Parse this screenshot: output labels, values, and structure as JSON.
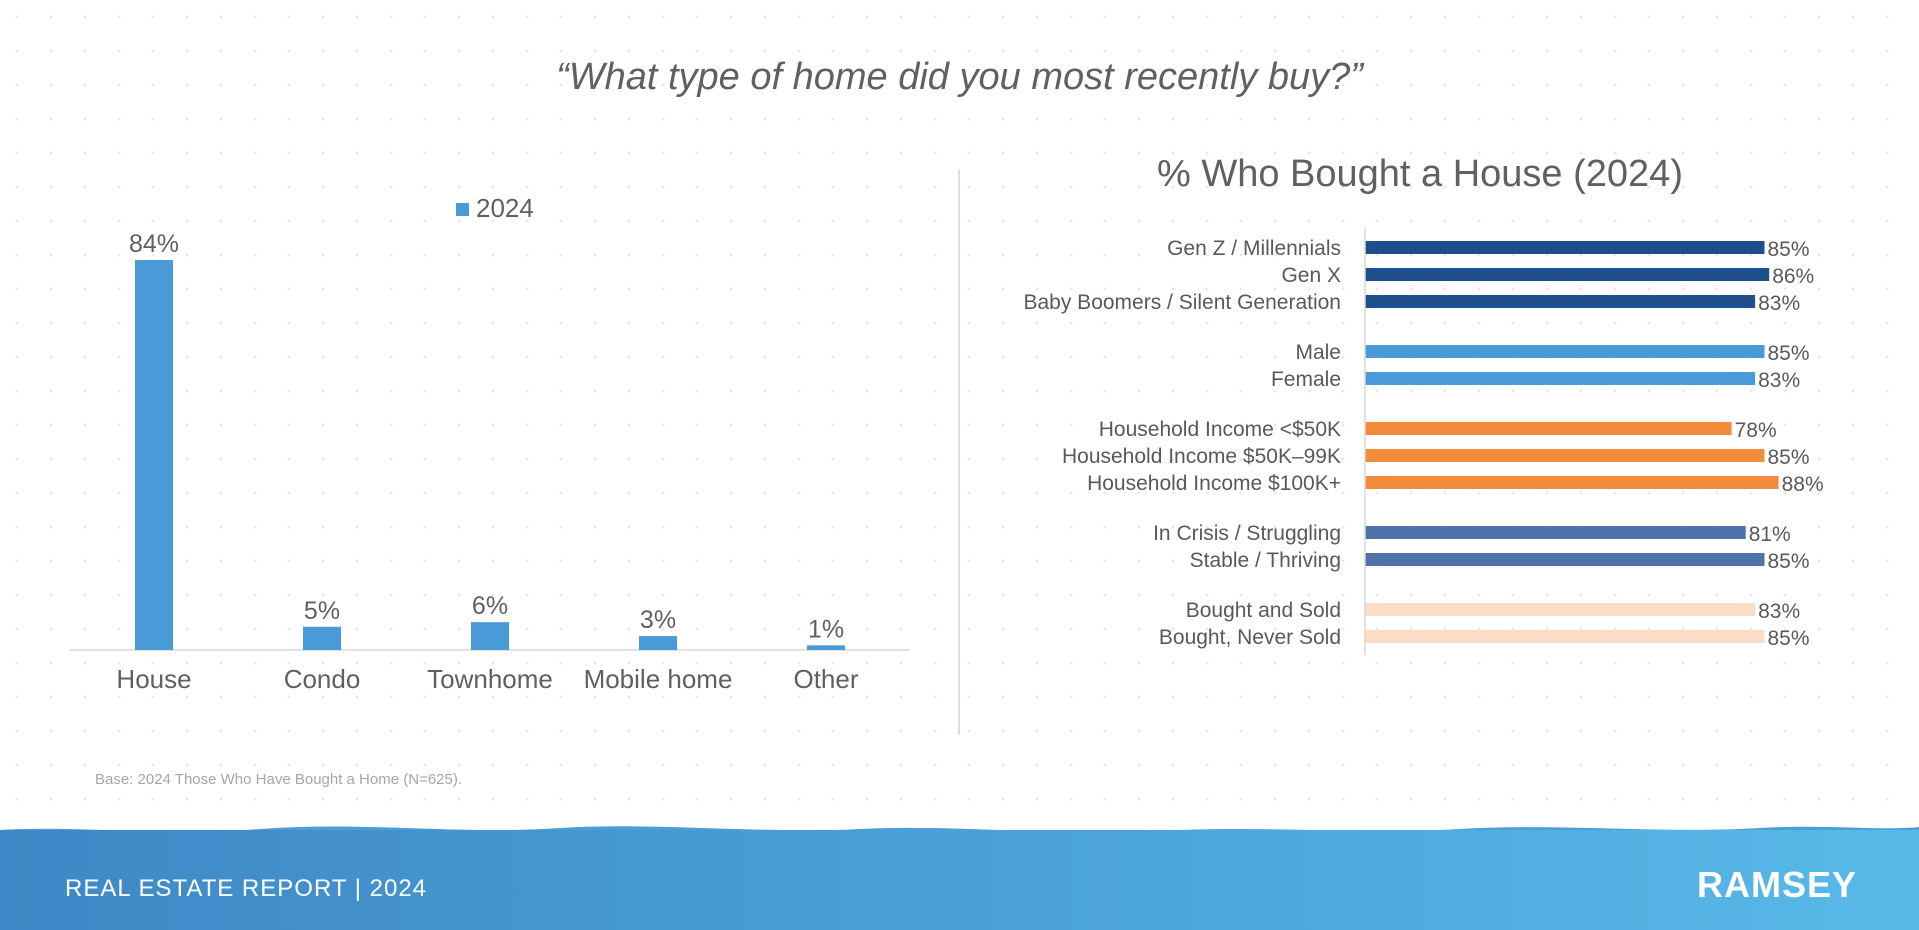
{
  "question": "“What type of home did you most recently buy?”",
  "base_note": "Base: 2024 Those Who Have Bought a Home (N=625).",
  "footer": {
    "title": "REAL ESTATE REPORT | 2024",
    "logo": "RAMSEY"
  },
  "colors": {
    "left_bar": "#4a9ad8",
    "generation": "#1f4e8c",
    "gender": "#4a9ad8",
    "income": "#f28c3c",
    "financial": "#4f72a8",
    "ownership": "#fcdcc5"
  },
  "chart_data": [
    {
      "type": "bar",
      "title": "",
      "legend": [
        "2024"
      ],
      "legend_placement": "top-center",
      "categories": [
        "House",
        "Condo",
        "Townhome",
        "Mobile home",
        "Other"
      ],
      "values": [
        84,
        5,
        6,
        3,
        1
      ],
      "data_labels": [
        "84%",
        "5%",
        "6%",
        "3%",
        "1%"
      ],
      "ylim": [
        0,
        84
      ],
      "grid": false
    },
    {
      "type": "bar",
      "orientation": "horizontal",
      "title": "% Who Bought a House (2024)",
      "xlim": [
        0,
        100
      ],
      "grid": false,
      "groups": [
        {
          "color_key": "generation",
          "items": [
            {
              "label": "Gen Z / Millennials",
              "value": 85,
              "display": "85%"
            },
            {
              "label": "Gen X",
              "value": 86,
              "display": "86%"
            },
            {
              "label": "Baby Boomers / Silent Generation",
              "value": 83,
              "display": "83%"
            }
          ]
        },
        {
          "color_key": "gender",
          "items": [
            {
              "label": "Male",
              "value": 85,
              "display": "85%"
            },
            {
              "label": "Female",
              "value": 83,
              "display": "83%"
            }
          ]
        },
        {
          "color_key": "income",
          "items": [
            {
              "label": "Household Income <$50K",
              "value": 78,
              "display": "78%"
            },
            {
              "label": "Household Income $50K–99K",
              "value": 85,
              "display": "85%"
            },
            {
              "label": "Household Income $100K+",
              "value": 88,
              "display": "88%"
            }
          ]
        },
        {
          "color_key": "financial",
          "items": [
            {
              "label": "In Crisis / Struggling",
              "value": 81,
              "display": "81%"
            },
            {
              "label": "Stable / Thriving",
              "value": 85,
              "display": "85%"
            }
          ]
        },
        {
          "color_key": "ownership",
          "items": [
            {
              "label": "Bought and Sold",
              "value": 83,
              "display": "83%"
            },
            {
              "label": "Bought, Never Sold",
              "value": 85,
              "display": "85%"
            }
          ]
        }
      ]
    }
  ]
}
